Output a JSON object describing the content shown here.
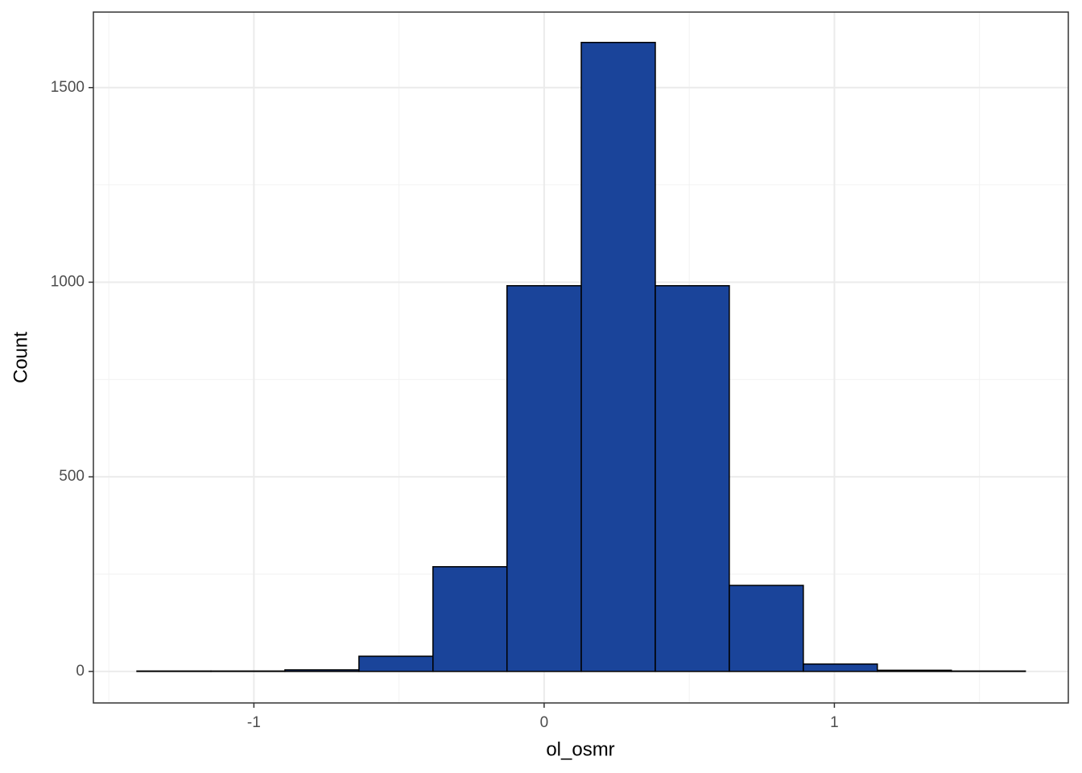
{
  "chart_data": {
    "type": "histogram",
    "x_label": "ol_osmr",
    "y_label": "Count",
    "bins": [
      -1.403,
      -1.148,
      -0.893,
      -0.638,
      -0.383,
      -0.128,
      0.128,
      0.383,
      0.638,
      0.893,
      1.148,
      1.403,
      1.658
    ],
    "counts": [
      1,
      1,
      4,
      39,
      269,
      991,
      1616,
      991,
      221,
      19,
      3,
      1
    ],
    "color": "#1a449a",
    "edgecolor": "#000000",
    "xlim": [
      -1.553,
      1.806
    ],
    "xticks": [
      -1,
      0,
      1
    ],
    "xminor": [
      -1.5,
      -0.5,
      0.5,
      1.5
    ],
    "ylim": [
      -81,
      1694
    ],
    "yticks": [
      0,
      500,
      1000,
      1500
    ],
    "yminor": [
      250,
      750,
      1250
    ],
    "grid": true
  }
}
